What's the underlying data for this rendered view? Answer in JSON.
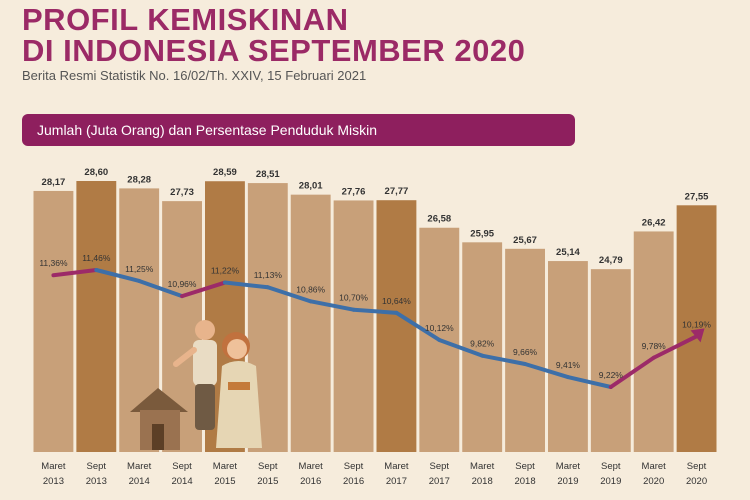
{
  "header": {
    "title_line1": "PROFIL KEMISKINAN",
    "title_line2": "DI INDONESIA SEPTEMBER 2020",
    "subtitle": "Berita Resmi Statistik No. 16/02/Th. XXIV, 15 Februari 2021"
  },
  "chart_data": {
    "type": "bar",
    "title": "Jumlah (Juta Orang) dan Persentase Penduduk Miskin",
    "categories": [
      [
        "Maret",
        "2013"
      ],
      [
        "Sept",
        "2013"
      ],
      [
        "Maret",
        "2014"
      ],
      [
        "Sept",
        "2014"
      ],
      [
        "Maret",
        "2015"
      ],
      [
        "Sept",
        "2015"
      ],
      [
        "Maret",
        "2016"
      ],
      [
        "Sept",
        "2016"
      ],
      [
        "Maret",
        "2017"
      ],
      [
        "Sept",
        "2017"
      ],
      [
        "Maret",
        "2018"
      ],
      [
        "Sept",
        "2018"
      ],
      [
        "Maret",
        "2019"
      ],
      [
        "Sept",
        "2019"
      ],
      [
        "Maret",
        "2020"
      ],
      [
        "Sept",
        "2020"
      ]
    ],
    "series": [
      {
        "values": [
          28.17,
          28.6,
          28.28,
          27.73,
          28.59,
          28.51,
          28.01,
          27.76,
          27.77,
          26.58,
          25.95,
          25.67,
          25.14,
          24.79,
          26.42,
          27.55
        ],
        "labels": [
          "28,17",
          "28,60",
          "28,28",
          "27,73",
          "28,59",
          "28,51",
          "28,01",
          "27,76",
          "27,77",
          "26,58",
          "25,95",
          "25,67",
          "25,14",
          "24,79",
          "26,42",
          "27,55"
        ]
      },
      {
        "values": [
          11.36,
          11.46,
          11.25,
          10.96,
          11.22,
          11.13,
          10.86,
          10.7,
          10.64,
          10.12,
          9.82,
          9.66,
          9.41,
          9.22,
          9.78,
          10.19
        ],
        "labels": [
          "11,36%",
          "11,46%",
          "11,25%",
          "10,96%",
          "11,22%",
          "11,13%",
          "10,86%",
          "10,70%",
          "10,64%",
          "10,12%",
          "9,82%",
          "9,66%",
          "9,41%",
          "9,22%",
          "9,78%",
          "10,19%"
        ]
      }
    ],
    "colors": {
      "bar_light": "#c8a079",
      "bar_dark": "#b07b45",
      "line_down": "#3d6fa8",
      "line_up": "#9c2a68",
      "text": "#333333"
    }
  }
}
